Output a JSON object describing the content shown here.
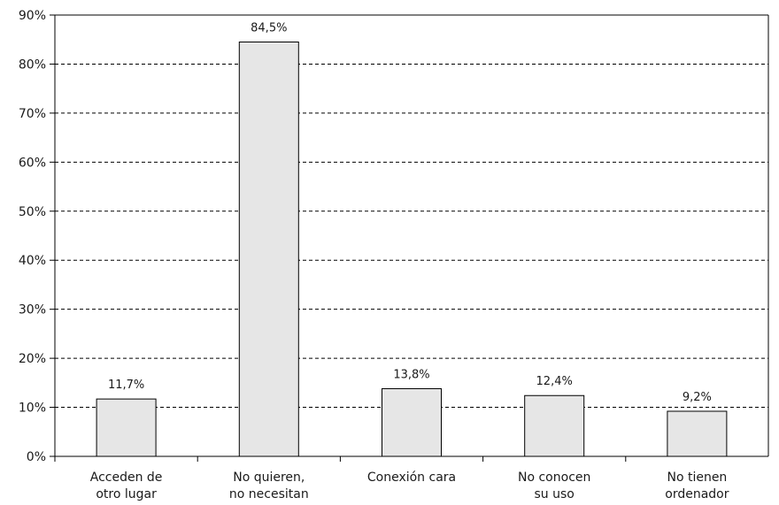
{
  "chart_data": {
    "type": "bar",
    "categories": [
      [
        "Acceden de",
        "otro lugar"
      ],
      [
        "No quieren,",
        "no necesitan"
      ],
      [
        "Conexión cara"
      ],
      [
        "No conocen",
        "su uso"
      ],
      [
        "No tienen",
        "ordenador"
      ]
    ],
    "values": [
      11.7,
      84.5,
      13.8,
      12.4,
      9.2
    ],
    "data_labels": [
      "11,7%",
      "84,5%",
      "13,8%",
      "12,4%",
      "9,2%"
    ],
    "ylim": [
      0,
      90
    ],
    "yticks": [
      0,
      10,
      20,
      30,
      40,
      50,
      60,
      70,
      80,
      90
    ],
    "ytick_labels": [
      "0%",
      "10%",
      "20%",
      "30%",
      "40%",
      "50%",
      "60%",
      "70%",
      "80%",
      "90%"
    ],
    "grid": "horizontal-dashed",
    "legend": "none",
    "colors": {
      "bar_fill": "#e6e6e6",
      "bar_stroke": "#000000",
      "axis": "#000000",
      "grid": "#000000"
    }
  }
}
